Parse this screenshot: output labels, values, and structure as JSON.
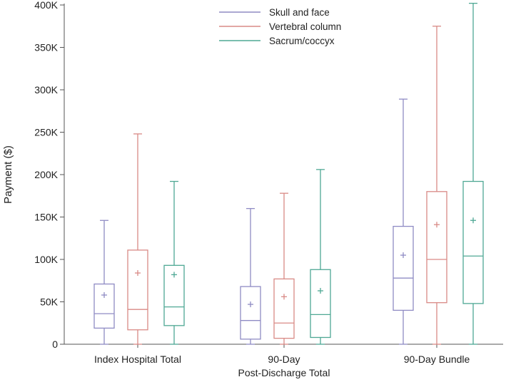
{
  "chart_data": {
    "type": "boxplot",
    "title": "",
    "xlabel": "",
    "ylabel": "Payment ($)",
    "ylim": [
      0,
      400000
    ],
    "yticks": [
      0,
      50000,
      100000,
      150000,
      200000,
      250000,
      300000,
      350000,
      400000
    ],
    "ytick_labels": [
      "0",
      "50K",
      "100K",
      "150K",
      "200K",
      "250K",
      "300K",
      "350K",
      "400K"
    ],
    "categories": [
      {
        "line1": "Index Hospital Total",
        "line2": ""
      },
      {
        "line1": "90-Day",
        "line2": "Post-Discharge Total"
      },
      {
        "line1": "90-Day Bundle",
        "line2": ""
      }
    ],
    "legend_position": "top-center",
    "series": [
      {
        "name": "Skull and face",
        "color": "#8f8bc4",
        "boxes": [
          {
            "min": 0,
            "q1": 19000,
            "median": 36000,
            "q3": 71000,
            "max": 146000,
            "mean": 58000
          },
          {
            "min": 0,
            "q1": 6000,
            "median": 28000,
            "q3": 68000,
            "max": 160000,
            "mean": 47000
          },
          {
            "min": 0,
            "q1": 40000,
            "median": 78000,
            "q3": 139000,
            "max": 289000,
            "mean": 105000
          }
        ]
      },
      {
        "name": "Vertebral column",
        "color": "#d98a86",
        "boxes": [
          {
            "min": 0,
            "q1": 17000,
            "median": 41000,
            "q3": 111000,
            "max": 248000,
            "mean": 84000
          },
          {
            "min": 0,
            "q1": 7000,
            "median": 25000,
            "q3": 77000,
            "max": 178000,
            "mean": 56000
          },
          {
            "min": 0,
            "q1": 49000,
            "median": 100000,
            "q3": 180000,
            "max": 375000,
            "mean": 141000
          }
        ]
      },
      {
        "name": "Sacrum/coccyx",
        "color": "#4fa894",
        "boxes": [
          {
            "min": 0,
            "q1": 22000,
            "median": 44000,
            "q3": 93000,
            "max": 192000,
            "mean": 82000
          },
          {
            "min": 0,
            "q1": 8000,
            "median": 35000,
            "q3": 88000,
            "max": 206000,
            "mean": 63000
          },
          {
            "min": 0,
            "q1": 48000,
            "median": 104000,
            "q3": 192000,
            "max": 402000,
            "mean": 146000
          }
        ]
      }
    ]
  }
}
